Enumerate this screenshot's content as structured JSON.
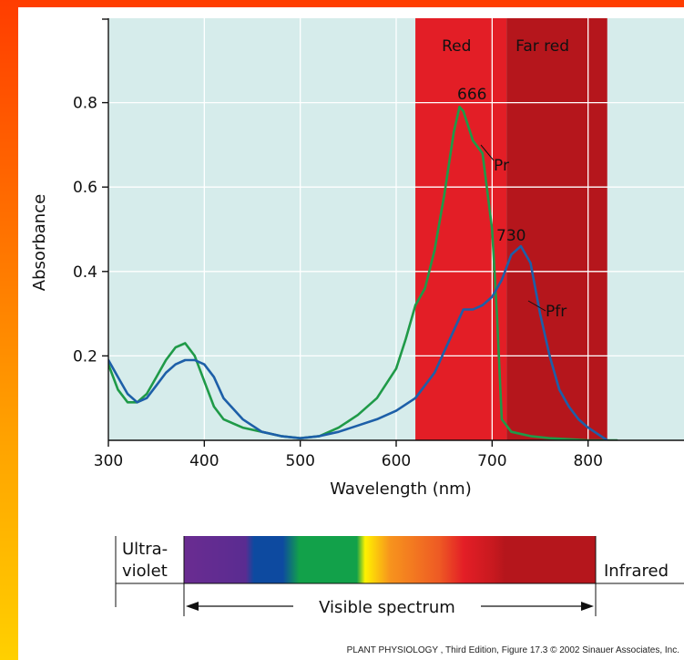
{
  "chart_data": {
    "type": "line",
    "title": "",
    "xlabel": "Wavelength (nm)",
    "ylabel": "Absorbance",
    "xlim": [
      300,
      900
    ],
    "ylim": [
      0,
      1.0
    ],
    "xticks": [
      "300",
      "400",
      "500",
      "600",
      "700",
      "800"
    ],
    "yticks": [
      "0.2",
      "0.4",
      "0.6",
      "0.8"
    ],
    "grid": true,
    "bands": [
      {
        "label": "Red",
        "from": 620,
        "to": 715,
        "color": "#e31e26"
      },
      {
        "label": "Far red",
        "from": 715,
        "to": 820,
        "color": "#b5161c"
      }
    ],
    "series": [
      {
        "name": "Pr",
        "color": "#1f9a48",
        "x": [
          300,
          310,
          320,
          330,
          340,
          350,
          360,
          370,
          380,
          390,
          400,
          410,
          420,
          440,
          460,
          480,
          500,
          520,
          540,
          560,
          580,
          600,
          610,
          620,
          630,
          640,
          650,
          660,
          666,
          670,
          680,
          690,
          700,
          705,
          710,
          720,
          740,
          760,
          800,
          830
        ],
        "y": [
          0.18,
          0.12,
          0.09,
          0.09,
          0.11,
          0.15,
          0.19,
          0.22,
          0.23,
          0.2,
          0.14,
          0.08,
          0.05,
          0.03,
          0.02,
          0.01,
          0.005,
          0.01,
          0.03,
          0.06,
          0.1,
          0.17,
          0.24,
          0.32,
          0.36,
          0.45,
          0.58,
          0.73,
          0.79,
          0.78,
          0.71,
          0.68,
          0.5,
          0.3,
          0.05,
          0.02,
          0.01,
          0.005,
          0.0,
          0.0
        ]
      },
      {
        "name": "Pfr",
        "color": "#1d5fa8",
        "x": [
          300,
          310,
          320,
          330,
          340,
          350,
          360,
          370,
          380,
          390,
          400,
          410,
          420,
          440,
          460,
          480,
          500,
          520,
          540,
          560,
          580,
          600,
          620,
          640,
          660,
          670,
          680,
          690,
          700,
          710,
          720,
          730,
          740,
          750,
          760,
          770,
          780,
          790,
          800,
          820
        ],
        "y": [
          0.19,
          0.15,
          0.11,
          0.09,
          0.1,
          0.13,
          0.16,
          0.18,
          0.19,
          0.19,
          0.18,
          0.15,
          0.1,
          0.05,
          0.02,
          0.01,
          0.005,
          0.01,
          0.02,
          0.035,
          0.05,
          0.07,
          0.1,
          0.16,
          0.26,
          0.31,
          0.31,
          0.32,
          0.34,
          0.38,
          0.44,
          0.46,
          0.42,
          0.3,
          0.2,
          0.12,
          0.08,
          0.05,
          0.03,
          0.0
        ]
      }
    ],
    "annotations": [
      {
        "text": "666",
        "x": 666,
        "y": 0.79
      },
      {
        "text": "730",
        "x": 730,
        "y": 0.46
      },
      {
        "text": "Pr"
      },
      {
        "text": "Pfr"
      }
    ]
  },
  "spectrum_bar": {
    "left_label_line1": "Ultra-",
    "left_label_line2": "violet",
    "right_label": "Infrared",
    "bottom_label": "Visible spectrum",
    "colors": [
      "#6a2c91",
      "#0d4aa0",
      "#12a14a",
      "#fff200",
      "#f7941d",
      "#e31e26",
      "#b5161c"
    ]
  },
  "caption": "PLANT PHYSIOLOGY , Third Edition, Figure 17.3 © 2002 Sinauer Associates, Inc."
}
